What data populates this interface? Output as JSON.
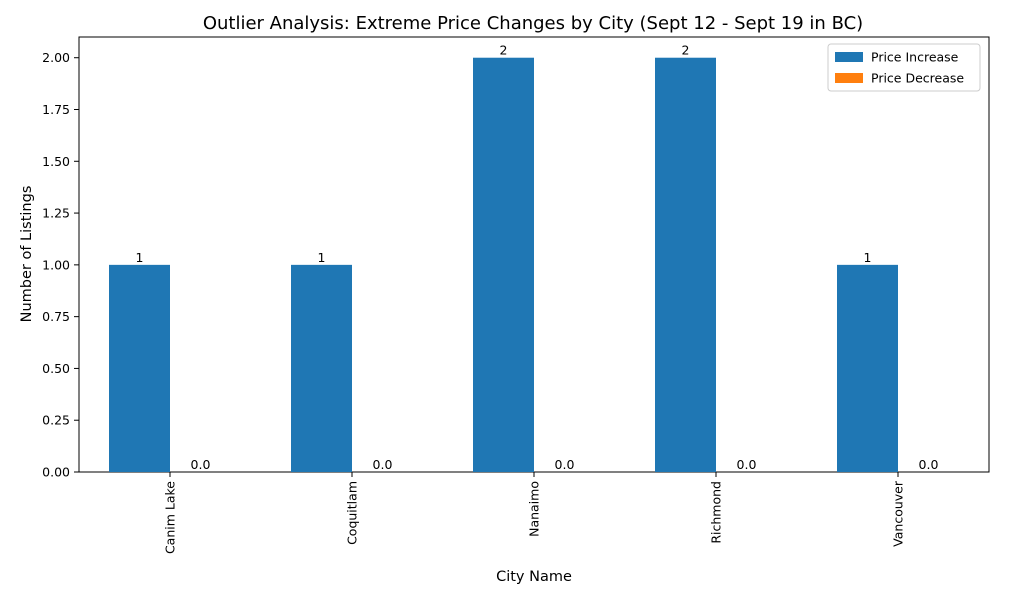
{
  "chart_data": {
    "type": "bar",
    "title": "Outlier Analysis: Extreme Price Changes by City (Sept 12 - Sept 19 in BC)",
    "xlabel": "City Name",
    "ylabel": "Number of Listings",
    "categories": [
      "Canim Lake",
      "Coquitlam",
      "Nanaimo",
      "Richmond",
      "Vancouver"
    ],
    "series": [
      {
        "name": "Price Increase",
        "values": [
          1,
          1,
          2,
          2,
          1
        ],
        "labels": [
          "1",
          "1",
          "2",
          "2",
          "1"
        ],
        "color": "#1f77b4"
      },
      {
        "name": "Price Decrease",
        "values": [
          0,
          0,
          0,
          0,
          0
        ],
        "labels": [
          "0.0",
          "0.0",
          "0.0",
          "0.0",
          "0.0"
        ],
        "color": "#ff7f0e"
      }
    ],
    "ylim": [
      0,
      2.1
    ],
    "yticks": [
      "0.00",
      "0.25",
      "0.50",
      "0.75",
      "1.00",
      "1.25",
      "1.50",
      "1.75",
      "2.00"
    ],
    "legend_position": "top-right",
    "grid": false
  }
}
